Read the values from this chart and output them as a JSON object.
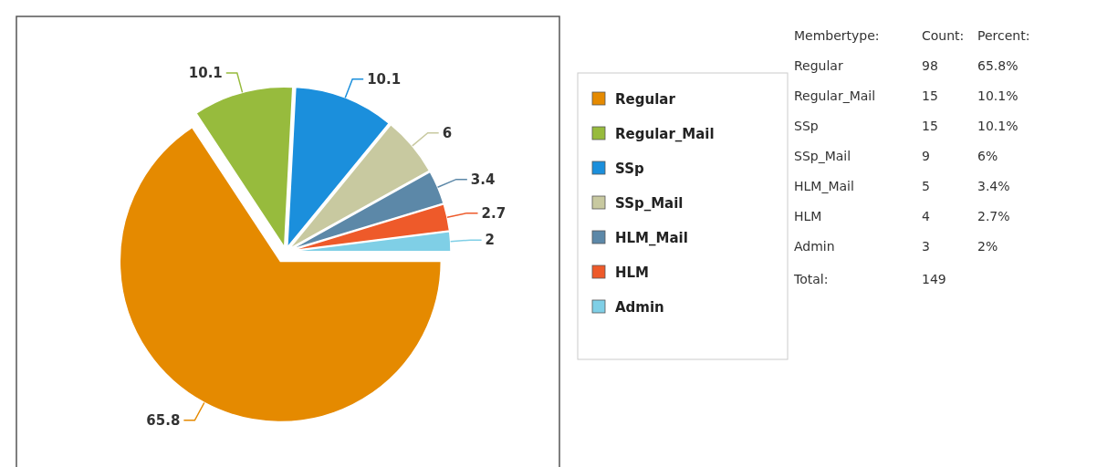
{
  "chart_data": [
    {
      "type": "pie",
      "categories": [
        "Regular",
        "Regular_Mail",
        "SSp",
        "SSp_Mail",
        "HLM_Mail",
        "HLM",
        "Admin"
      ],
      "values": [
        65.8,
        10.1,
        10.1,
        6,
        3.4,
        2.7,
        2
      ],
      "colors": [
        "#e58a00",
        "#97bb3d",
        "#1b8fdc",
        "#c8c9a0",
        "#5c88a8",
        "#ee5a2a",
        "#7fcfe6"
      ],
      "data_labels": true,
      "legend": "right"
    },
    {
      "type": "other",
      "annotations": [
        "Membertype:",
        "Count:",
        "Percent:",
        "Regular",
        "98",
        "65.8%",
        "Regular_Mail",
        "15",
        "10.1%",
        "SSp",
        "15",
        "10.1%",
        "SSp_Mail",
        "9",
        "6%",
        "HLM_Mail",
        "5",
        "3.4%",
        "HLM",
        "4",
        "2.7%",
        "Admin",
        "3",
        "2%",
        "Total:",
        "149"
      ]
    }
  ]
}
